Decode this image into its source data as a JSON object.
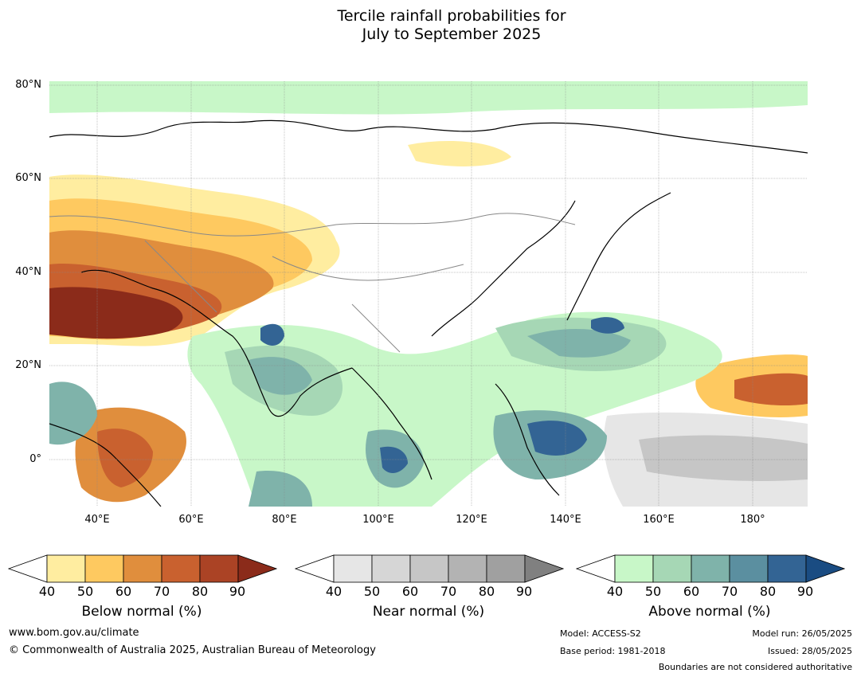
{
  "title_line1": "Tercile rainfall probabilities for",
  "title_line2": "July to September 2025",
  "map": {
    "lat_labels": [
      "80°N",
      "60°N",
      "40°N",
      "20°N",
      "0°"
    ],
    "lon_labels": [
      "40°E",
      "60°E",
      "80°E",
      "100°E",
      "120°E",
      "140°E",
      "160°E",
      "180°"
    ]
  },
  "colorbars": [
    {
      "label": "Below normal (%)",
      "ticks": [
        "40",
        "50",
        "60",
        "70",
        "80",
        "90"
      ],
      "colors": [
        "#ffeda0",
        "#fec960",
        "#e08e3d",
        "#c9612f",
        "#ab4325",
        "#8b2b1a"
      ]
    },
    {
      "label": "Near normal (%)",
      "ticks": [
        "40",
        "50",
        "60",
        "70",
        "80",
        "90"
      ],
      "colors": [
        "#e6e6e6",
        "#d6d6d6",
        "#c6c6c6",
        "#b3b3b3",
        "#a0a0a0",
        "#808080"
      ]
    },
    {
      "label": "Above normal (%)",
      "ticks": [
        "40",
        "50",
        "60",
        "70",
        "80",
        "90"
      ],
      "colors": [
        "#c8f7c8",
        "#a6d7b5",
        "#7fb3aa",
        "#5b8fa0",
        "#336494",
        "#1a4c82"
      ]
    }
  ],
  "footer": {
    "website": "www.bom.gov.au/climate",
    "copyright": "© Commonwealth of Australia 2025, Australian Bureau of Meteorology",
    "model": "Model: ACCESS-S2",
    "base_period": "Base period: 1981-2018",
    "model_run": "Model run: 26/05/2025",
    "issued": "Issued: 28/05/2025",
    "boundaries": "Boundaries are not considered authoritative"
  }
}
